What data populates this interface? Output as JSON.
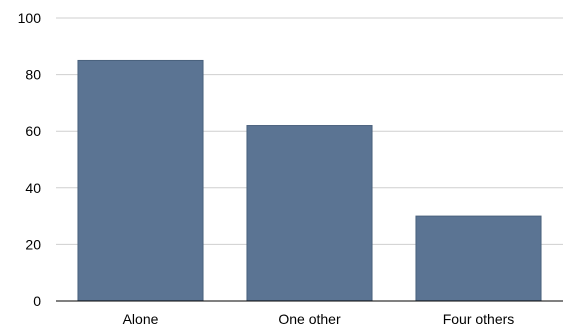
{
  "chart_data": {
    "type": "bar",
    "categories": [
      "Alone",
      "One other",
      "Four others"
    ],
    "values": [
      85,
      62,
      30
    ],
    "ylim": [
      0,
      100
    ],
    "yticks": [
      0,
      20,
      40,
      60,
      80,
      100
    ],
    "title": "",
    "xlabel": "",
    "ylabel": "",
    "grid": true,
    "bar_color": "#5b7493",
    "grid_color": "#cfcfcf"
  }
}
